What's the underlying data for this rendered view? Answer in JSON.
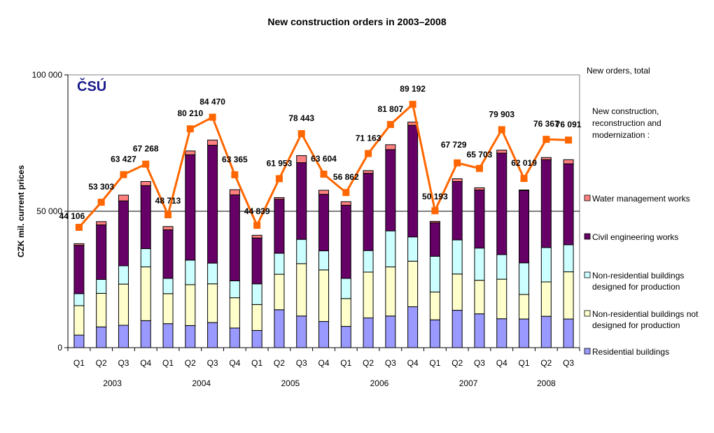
{
  "chart_data": {
    "type": "bar",
    "stacked": true,
    "title": "New construction orders in 2003–2008",
    "ylabel": "CZK mil. current prices",
    "xlabel": "",
    "ylim": [
      0,
      100000
    ],
    "yticks": [
      0,
      50000,
      100000
    ],
    "ytick_labels": [
      "0",
      "50 000",
      "100 000"
    ],
    "gridlines": [
      50000
    ],
    "logo_text": "ČSÚ",
    "categories": [
      "Q1",
      "Q2",
      "Q3",
      "Q4",
      "Q1",
      "Q2",
      "Q3",
      "Q4",
      "Q1",
      "Q2",
      "Q3",
      "Q4",
      "Q1",
      "Q2",
      "Q3",
      "Q4",
      "Q1",
      "Q2",
      "Q3",
      "Q4",
      "Q1",
      "Q2",
      "Q3"
    ],
    "years": [
      {
        "label": "2003",
        "quarters": 4
      },
      {
        "label": "2004",
        "quarters": 4
      },
      {
        "label": "2005",
        "quarters": 4
      },
      {
        "label": "2006",
        "quarters": 4
      },
      {
        "label": "2007",
        "quarters": 4
      },
      {
        "label": "2008",
        "quarters": 3
      }
    ],
    "series": [
      {
        "name": "Residential buildings",
        "color": "#9999FF",
        "values": [
          4600,
          7600,
          8200,
          9900,
          8800,
          8100,
          9200,
          7200,
          6300,
          13900,
          11600,
          9600,
          7800,
          10900,
          11600,
          15000,
          10200,
          13700,
          12400,
          10600,
          10500,
          11500,
          10500
        ]
      },
      {
        "name": "Non-residential buildings not designed for production",
        "color": "#FFFFCC",
        "values": [
          10800,
          12300,
          15100,
          19700,
          11000,
          15000,
          14200,
          11100,
          9500,
          13000,
          19200,
          18900,
          10200,
          16800,
          18000,
          16700,
          10200,
          13300,
          12300,
          14500,
          9000,
          12600,
          17300
        ]
      },
      {
        "name": "Non-residential buildings designed for production",
        "color": "#CCFFFF",
        "values": [
          4400,
          5100,
          6700,
          6700,
          5600,
          9000,
          7600,
          6200,
          7600,
          7700,
          8900,
          7000,
          7400,
          7900,
          13200,
          8900,
          13100,
          12500,
          11800,
          9000,
          11600,
          12600,
          9900
        ]
      },
      {
        "name": "Civil engineering works",
        "color": "#660066",
        "values": [
          17700,
          20000,
          23800,
          23100,
          17800,
          38600,
          43200,
          31500,
          16800,
          19800,
          28100,
          20700,
          26800,
          28300,
          29800,
          40900,
          12300,
          21400,
          21300,
          37200,
          26500,
          32200,
          29700
        ]
      },
      {
        "name": "Water management works",
        "color": "#FF8080",
        "values": [
          600,
          1200,
          2100,
          1500,
          1200,
          1400,
          1900,
          1900,
          1000,
          600,
          2600,
          1500,
          1300,
          1000,
          1800,
          1200,
          500,
          1000,
          800,
          1100,
          200,
          800,
          1500
        ]
      }
    ],
    "line_series": {
      "name": "New orders, total",
      "color": "#FF6600",
      "values": [
        44106,
        53303,
        63427,
        67268,
        48713,
        80210,
        84470,
        63365,
        44839,
        61953,
        78443,
        63604,
        56862,
        71163,
        81807,
        89192,
        50193,
        67729,
        65703,
        79903,
        62019,
        76367,
        76091
      ],
      "labels": [
        "44 106",
        "53 303",
        "63 427",
        "67 268",
        "48 713",
        "80 210",
        "84 470",
        "63 365",
        "44 839",
        "61 953",
        "78 443",
        "63 604",
        "56 862",
        "71 163",
        "81 807",
        "89 192",
        "50 193",
        "67 729",
        "65 703",
        "79 903",
        "62 019",
        "76 367",
        "76 091"
      ]
    },
    "legend": {
      "placement": "right",
      "line_entry": "New orders, total",
      "group_heading": "New construction, reconstruction and modernization :",
      "group_heading_lines": [
        "New construction,",
        "reconstruction and",
        "modernization :"
      ],
      "entries": [
        {
          "lines": [
            "Water management works"
          ],
          "color": "#FF8080"
        },
        {
          "lines": [
            "Civil engineering works"
          ],
          "color": "#660066"
        },
        {
          "lines": [
            "Non-residential buildings",
            "designed for production"
          ],
          "color": "#CCFFFF"
        },
        {
          "lines": [
            "Non-residential buildings not",
            "designed for production"
          ],
          "color": "#FFFFCC"
        },
        {
          "lines": [
            "Residential buildings"
          ],
          "color": "#9999FF"
        }
      ]
    }
  }
}
